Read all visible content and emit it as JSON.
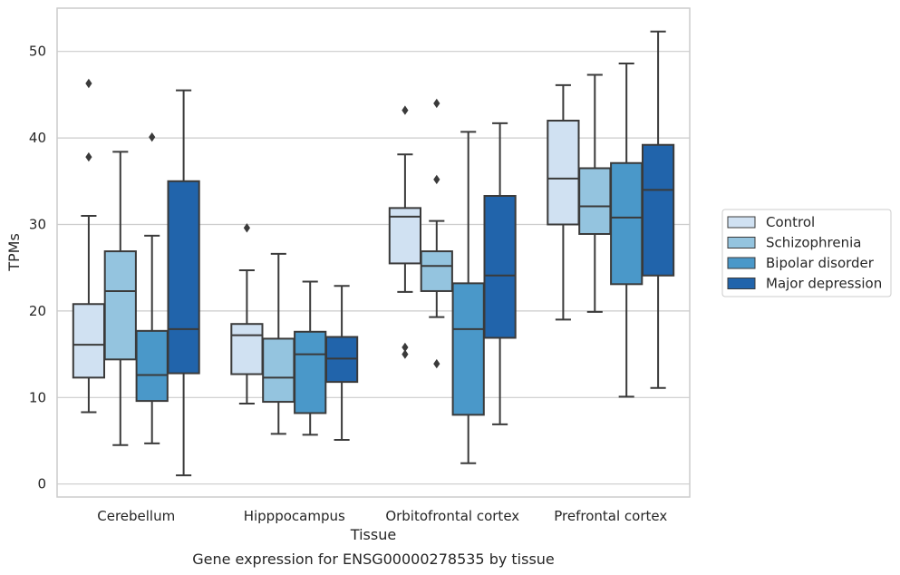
{
  "chart_data": {
    "type": "box",
    "title": "",
    "caption": "Gene expression for ENSG00000278535 by tissue",
    "xlabel": "Tissue",
    "ylabel": "TPMs",
    "ylim": [
      -1.5,
      55
    ],
    "yticks": [
      0,
      10,
      20,
      30,
      40,
      50
    ],
    "grid": "horizontal",
    "legend_position": "right",
    "categories": [
      "Cerebellum",
      "Hipppocampus",
      "Orbitofrontal cortex",
      "Prefrontal cortex"
    ],
    "series": [
      {
        "name": "Control",
        "color": "#d0e1f2",
        "boxes": [
          {
            "whislo": 8.3,
            "q1": 12.3,
            "med": 16.1,
            "q3": 20.8,
            "whishi": 31.0,
            "fliers": [
              37.8,
              46.3
            ]
          },
          {
            "whislo": 9.3,
            "q1": 12.7,
            "med": 17.2,
            "q3": 18.5,
            "whishi": 24.7,
            "fliers": [
              29.6
            ]
          },
          {
            "whislo": 22.2,
            "q1": 25.5,
            "med": 30.9,
            "q3": 31.9,
            "whishi": 38.1,
            "fliers": [
              15.0,
              15.8,
              43.2
            ]
          },
          {
            "whislo": 19.0,
            "q1": 30.0,
            "med": 35.3,
            "q3": 42.0,
            "whishi": 46.1,
            "fliers": []
          }
        ]
      },
      {
        "name": "Schizophrenia",
        "color": "#94c4df",
        "boxes": [
          {
            "whislo": 4.5,
            "q1": 14.4,
            "med": 22.3,
            "q3": 26.9,
            "whishi": 38.4,
            "fliers": []
          },
          {
            "whislo": 5.8,
            "q1": 9.5,
            "med": 12.3,
            "q3": 16.8,
            "whishi": 26.6,
            "fliers": []
          },
          {
            "whislo": 19.3,
            "q1": 22.3,
            "med": 25.2,
            "q3": 26.9,
            "whishi": 30.4,
            "fliers": [
              13.9,
              35.2,
              44.0
            ]
          },
          {
            "whislo": 19.9,
            "q1": 28.9,
            "med": 32.1,
            "q3": 36.5,
            "whishi": 47.3,
            "fliers": []
          }
        ]
      },
      {
        "name": "Bipolar disorder",
        "color": "#4a98c9",
        "boxes": [
          {
            "whislo": 4.7,
            "q1": 9.6,
            "med": 12.6,
            "q3": 17.7,
            "whishi": 28.7,
            "fliers": [
              40.1
            ]
          },
          {
            "whislo": 5.7,
            "q1": 8.2,
            "med": 15.0,
            "q3": 17.6,
            "whishi": 23.4,
            "fliers": []
          },
          {
            "whislo": 2.4,
            "q1": 8.0,
            "med": 17.9,
            "q3": 23.2,
            "whishi": 40.7,
            "fliers": []
          },
          {
            "whislo": 10.1,
            "q1": 23.1,
            "med": 30.8,
            "q3": 37.1,
            "whishi": 48.6,
            "fliers": []
          }
        ]
      },
      {
        "name": "Major depression",
        "color": "#2164ab",
        "boxes": [
          {
            "whislo": 1.0,
            "q1": 12.8,
            "med": 17.9,
            "q3": 35.0,
            "whishi": 45.5,
            "fliers": []
          },
          {
            "whislo": 5.1,
            "q1": 11.8,
            "med": 14.5,
            "q3": 17.0,
            "whishi": 22.9,
            "fliers": []
          },
          {
            "whislo": 6.9,
            "q1": 16.9,
            "med": 24.1,
            "q3": 33.3,
            "whishi": 41.7,
            "fliers": []
          },
          {
            "whislo": 11.1,
            "q1": 24.1,
            "med": 34.0,
            "q3": 39.2,
            "whishi": 52.3,
            "fliers": []
          }
        ]
      }
    ]
  },
  "style": {
    "grid_color": "#cccccc",
    "spine_color": "#cccccc",
    "line_color": "#3a3a3a",
    "legend_border": "#cccccc"
  }
}
